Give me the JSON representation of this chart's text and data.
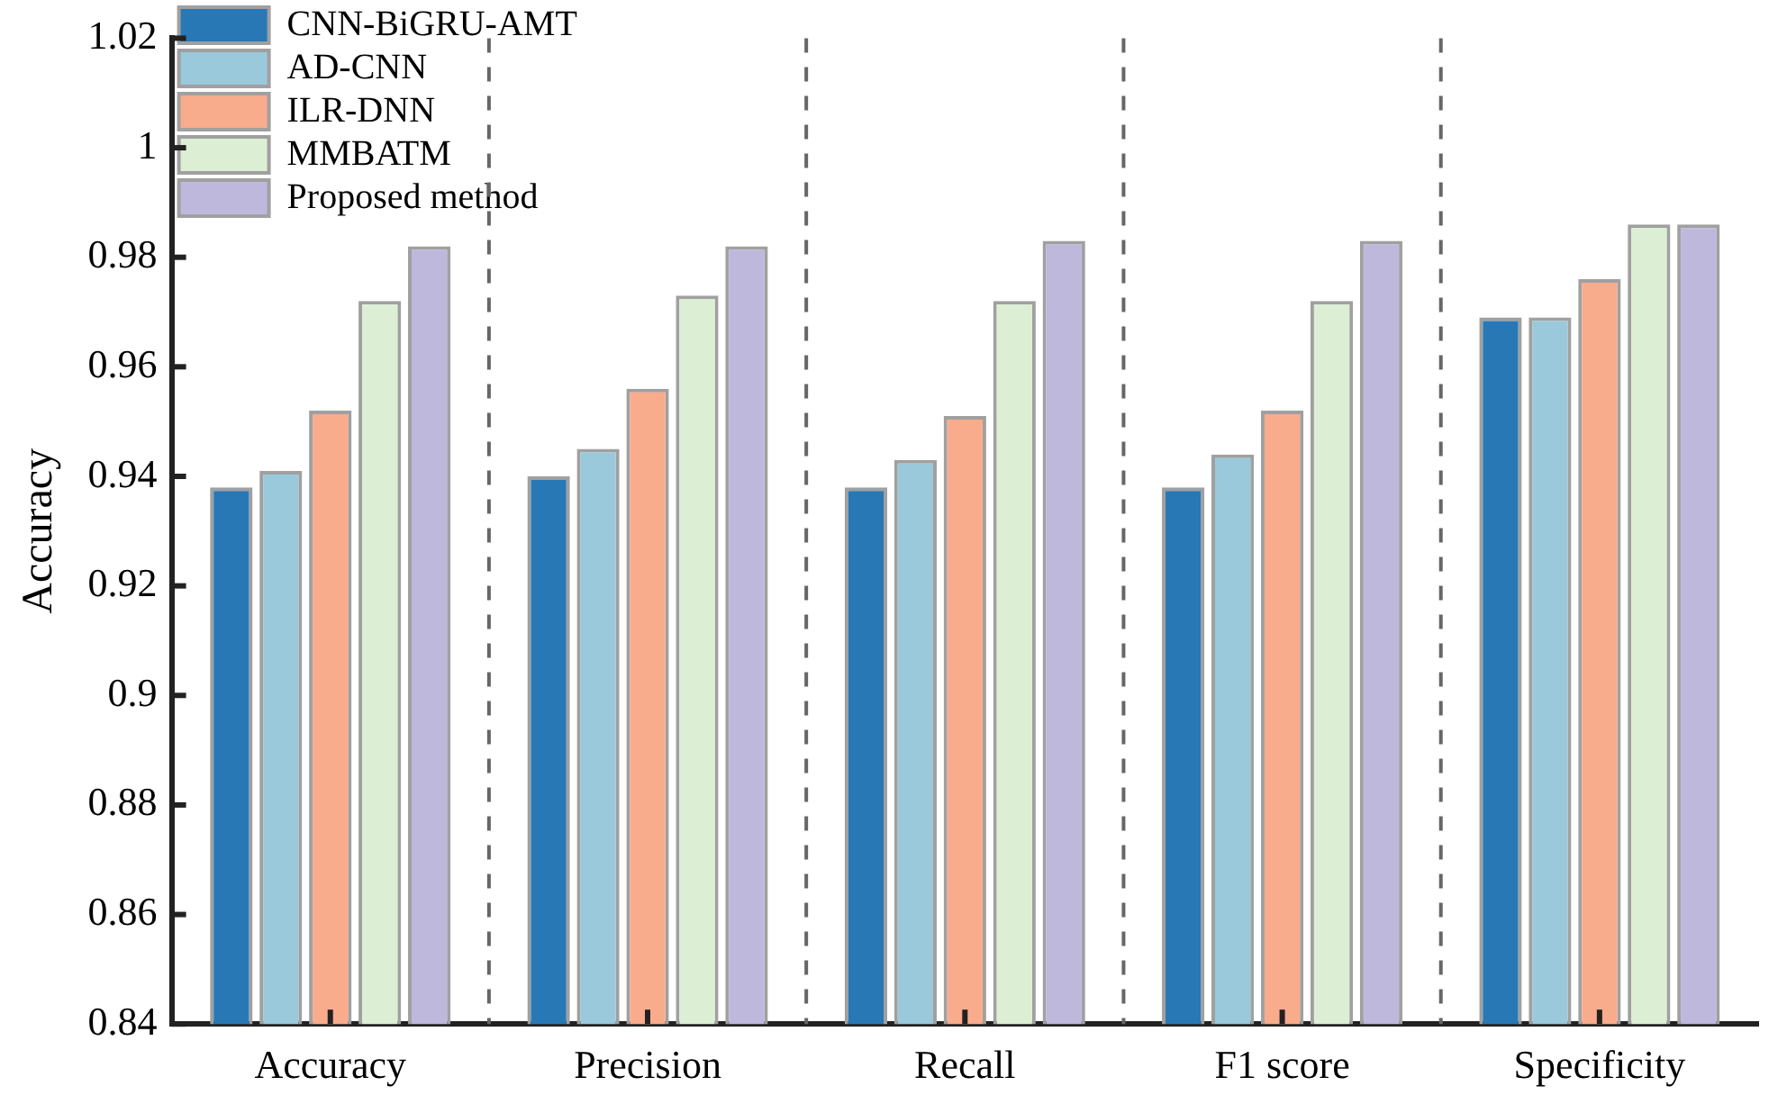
{
  "chart_data": {
    "type": "bar",
    "ylabel": "Accuracy",
    "categories": [
      "Accuracy",
      "Precision",
      "Recall",
      "F1 score",
      "Specificity"
    ],
    "series": [
      {
        "name": "CNN-BiGRU-AMT",
        "color": "#2878b5",
        "values": [
          0.938,
          0.94,
          0.938,
          0.938,
          0.969
        ]
      },
      {
        "name": "AD-CNN",
        "color": "#9ac9db",
        "values": [
          0.941,
          0.945,
          0.943,
          0.944,
          0.969
        ]
      },
      {
        "name": "ILR-DNN",
        "color": "#f8ac8c",
        "values": [
          0.952,
          0.956,
          0.951,
          0.952,
          0.976
        ]
      },
      {
        "name": "MMBATM",
        "color": "#dcefd4",
        "values": [
          0.972,
          0.973,
          0.972,
          0.972,
          0.986
        ]
      },
      {
        "name": "Proposed method",
        "color": "#beb8dc",
        "values": [
          0.982,
          0.982,
          0.983,
          0.983,
          0.986
        ]
      }
    ],
    "ylim": [
      0.84,
      1.02
    ],
    "yticks": [
      0.84,
      0.86,
      0.88,
      0.9,
      0.92,
      0.94,
      0.96,
      0.98,
      1,
      1.02
    ],
    "grid": "x",
    "legend": "top left"
  }
}
